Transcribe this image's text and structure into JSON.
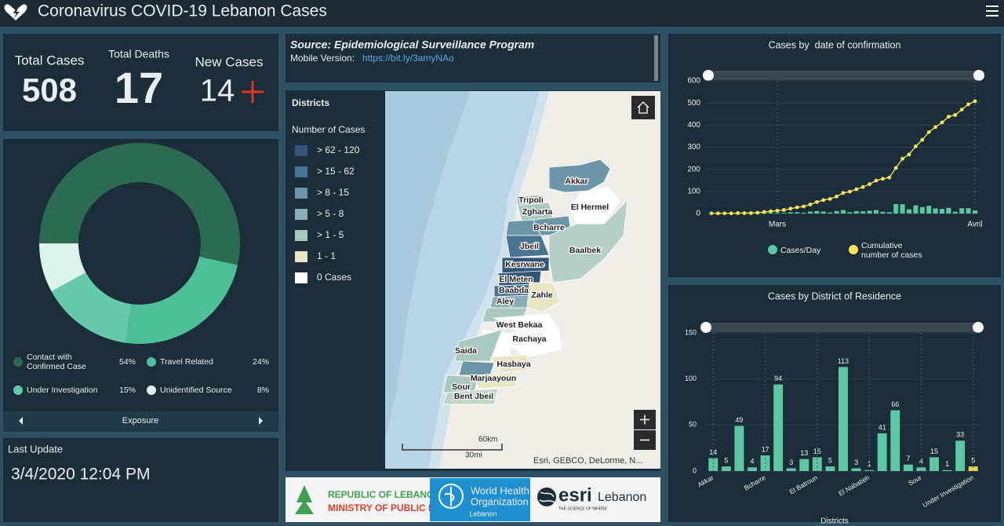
{
  "header": {
    "title": "Coronavirus COVID-19 Lebanon Cases"
  },
  "kpis": [
    {
      "label": "Total Cases",
      "value": 508
    },
    {
      "label": "Total Deaths",
      "value": 17
    },
    {
      "label": "New Cases",
      "value": 14
    }
  ],
  "last_update": {
    "label": "Last Update",
    "value": "3/4/2020 12:04 PM"
  },
  "source": {
    "title": "Source: Epidemiological Surveillance Program",
    "mobile_label": "Mobile Version:",
    "link": "https://bit.ly/3amyNAo"
  },
  "map": {
    "legend_title": "Districts",
    "legend_subtitle": "Number of Cases",
    "classes": [
      "> 62 - 120",
      "> 15 - 62",
      "> 8 - 15",
      "> 5 - 8",
      "> 1 - 5",
      "1 - 1",
      "0 Cases"
    ],
    "districts": [
      "Akkar",
      "Tripoli",
      "Zgharta",
      "El Hermel",
      "Bcharre",
      "Jbeil",
      "Baalbek",
      "Kesrwane",
      "El Meten",
      "Baabda",
      "Aley",
      "Zahle",
      "West Bekaa",
      "Rachaya",
      "Saida",
      "Hasbaya",
      "Marjaayoun",
      "Sour",
      "Bent Jbeil"
    ],
    "scale_km": "60km",
    "scale_mi": "30mi",
    "attribution": "Esri, GEBCO, DeLorme, N..."
  },
  "logos": {
    "lebanon_line1": "REPUBLIC OF LEBANON",
    "lebanon_line2": "MINISTRY OF PUBLIC HEALTH",
    "who_line1": "World Health",
    "who_line2": "Organization",
    "who_country": "Lebanon",
    "esri": "esri",
    "esri_country": "Lebanon",
    "esri_tagline": "THE SCIENCE OF WHERE"
  },
  "chart_data": [
    {
      "type": "pie",
      "title": "Exposure",
      "categories": [
        "Contact with Confirmed Case",
        "Travel Related",
        "Under Investigation",
        "Unidentified Source"
      ],
      "values": [
        54,
        24,
        15,
        8
      ],
      "value_labels": [
        "54%",
        "24%",
        "15%",
        "8%"
      ],
      "colors": [
        "#2c6a52",
        "#4fbf98",
        "#66c9ab",
        "#dcf3ec"
      ]
    },
    {
      "type": "combo",
      "title": "Cases by  date of confirmation",
      "categories": [
        null,
        null,
        null,
        null,
        null,
        null,
        null,
        null,
        null,
        null,
        "Mars",
        null,
        null,
        null,
        null,
        null,
        null,
        null,
        null,
        null,
        null,
        null,
        null,
        null,
        null,
        null,
        null,
        null,
        null,
        null,
        null,
        null,
        null,
        null,
        null,
        null,
        null,
        null,
        null,
        null,
        "Avril"
      ],
      "series": [
        {
          "name": "Cases/Day",
          "type": "bar",
          "color": "#5cc7a0",
          "values": [
            1,
            0,
            0,
            0,
            1,
            0,
            0,
            2,
            3,
            3,
            3,
            3,
            6,
            6,
            4,
            9,
            11,
            9,
            5,
            11,
            16,
            6,
            11,
            10,
            13,
            16,
            8,
            6,
            43,
            42,
            19,
            37,
            29,
            35,
            23,
            21,
            26,
            8,
            24,
            24,
            14
          ]
        },
        {
          "name": "Cumulative number of cases",
          "type": "line",
          "color": "#f4e65a",
          "values": [
            1,
            1,
            1,
            1,
            2,
            2,
            2,
            4,
            7,
            10,
            13,
            16,
            22,
            28,
            32,
            41,
            52,
            61,
            66,
            77,
            93,
            99,
            110,
            120,
            133,
            149,
            157,
            163,
            206,
            248,
            267,
            304,
            333,
            368,
            391,
            412,
            438,
            446,
            470,
            494,
            508
          ]
        }
      ],
      "ylim": [
        0,
        600
      ],
      "yticks": [
        0,
        100,
        200,
        300,
        400,
        500,
        600
      ],
      "grid": true
    },
    {
      "type": "bar",
      "title": "Cases by District of Residence",
      "x_label": "Districts",
      "categories": [
        "Akkar",
        null,
        null,
        null,
        "Bcharre",
        null,
        null,
        null,
        "El Batroun",
        null,
        null,
        null,
        "El Nabatieh",
        null,
        null,
        null,
        "Sour",
        null,
        null,
        null,
        "Under Investigation"
      ],
      "values": [
        14,
        5,
        49,
        4,
        17,
        94,
        3,
        13,
        15,
        5,
        113,
        3,
        1,
        41,
        66,
        7,
        4,
        15,
        1,
        33,
        5
      ],
      "colors": [
        "#5cc7a0",
        "#5cc7a0",
        "#5cc7a0",
        "#5cc7a0",
        "#5cc7a0",
        "#5cc7a0",
        "#5cc7a0",
        "#5cc7a0",
        "#5cc7a0",
        "#5cc7a0",
        "#5cc7a0",
        "#5cc7a0",
        "#5cc7a0",
        "#5cc7a0",
        "#5cc7a0",
        "#5cc7a0",
        "#5cc7a0",
        "#5cc7a0",
        "#5cc7a0",
        "#5cc7a0",
        "#e7d24f"
      ],
      "ylim": [
        0,
        150
      ],
      "yticks": [
        0,
        50,
        100,
        150
      ],
      "grid": true
    }
  ]
}
